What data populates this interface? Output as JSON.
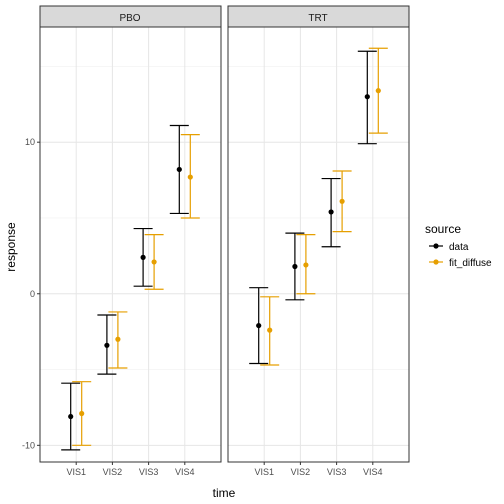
{
  "chart_data": {
    "type": "errorbar",
    "facet_order": [
      "PBO",
      "TRT"
    ],
    "categories": [
      "VIS1",
      "VIS2",
      "VIS3",
      "VIS4"
    ],
    "xlabel": "time",
    "ylabel": "response",
    "ylim": [
      -11.1,
      17.6
    ],
    "yticks": [
      -10,
      0,
      10
    ],
    "grid": true,
    "legend": {
      "title": "source",
      "position": "right",
      "entries": [
        "data",
        "fit_diffuse"
      ]
    },
    "series": [
      {
        "name": "data",
        "color": "#000000",
        "facets": {
          "PBO": {
            "y": [
              -8.1,
              -3.4,
              2.4,
              8.2
            ],
            "lower": [
              -10.3,
              -5.3,
              0.5,
              5.3
            ],
            "upper": [
              -5.9,
              -1.4,
              4.3,
              11.1
            ]
          },
          "TRT": {
            "y": [
              -2.1,
              1.8,
              5.4,
              13.0
            ],
            "lower": [
              -4.6,
              -0.4,
              3.1,
              9.9
            ],
            "upper": [
              0.4,
              4.0,
              7.6,
              16.0
            ]
          }
        }
      },
      {
        "name": "fit_diffuse",
        "color": "#E69F00",
        "facets": {
          "PBO": {
            "y": [
              -7.9,
              -3.0,
              2.1,
              7.7
            ],
            "lower": [
              -10.0,
              -4.9,
              0.3,
              5.0
            ],
            "upper": [
              -5.8,
              -1.2,
              3.9,
              10.5
            ]
          },
          "TRT": {
            "y": [
              -2.4,
              1.9,
              6.1,
              13.4
            ],
            "lower": [
              -4.7,
              0.0,
              4.1,
              10.6
            ],
            "upper": [
              -0.2,
              3.9,
              8.1,
              16.2
            ]
          }
        }
      }
    ]
  }
}
